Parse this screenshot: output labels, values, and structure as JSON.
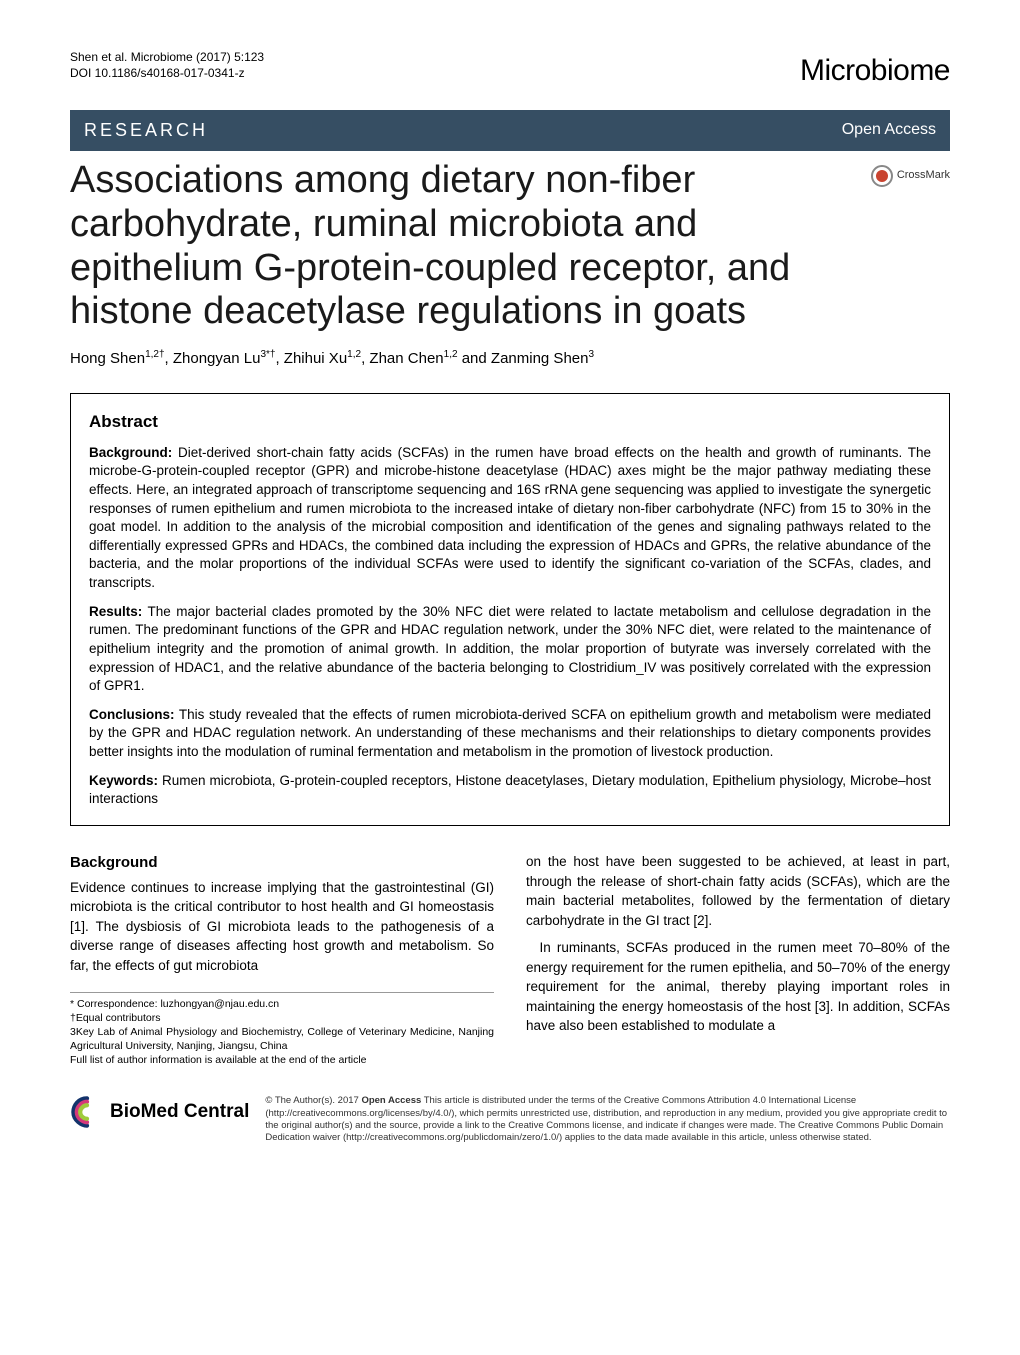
{
  "header": {
    "citation_line1": "Shen et al. Microbiome  (2017) 5:123",
    "citation_line2": "DOI 10.1186/s40168-017-0341-z",
    "journal_name": "Microbiome"
  },
  "bar": {
    "research": "RESEARCH",
    "open_access": "Open Access"
  },
  "title": "Associations among dietary non-fiber carbohydrate, ruminal microbiota and epithelium G-protein-coupled receptor, and histone deacetylase regulations in goats",
  "crossmark_label": "CrossMark",
  "authors_html": "Hong Shen<sup>1,2†</sup>, Zhongyan Lu<sup>3*†</sup>, Zhihui Xu<sup>1,2</sup>, Zhan Chen<sup>1,2</sup> and Zanming Shen<sup>3</sup>",
  "abstract": {
    "heading": "Abstract",
    "background_label": "Background:",
    "background": "Diet-derived short-chain fatty acids (SCFAs) in the rumen have broad effects on the health and growth of ruminants. The microbe-G-protein-coupled receptor (GPR) and microbe-histone deacetylase (HDAC) axes might be the major pathway mediating these effects. Here, an integrated approach of transcriptome sequencing and 16S rRNA gene sequencing was applied to investigate the synergetic responses of rumen epithelium and rumen microbiota to the increased intake of dietary non-fiber carbohydrate (NFC) from 15 to 30% in the goat model. In addition to the analysis of the microbial composition and identification of the genes and signaling pathways related to the differentially expressed GPRs and HDACs, the combined data including the expression of HDACs and GPRs, the relative abundance of the bacteria, and the molar proportions of the individual SCFAs were used to identify the significant co-variation of the SCFAs, clades, and transcripts.",
    "results_label": "Results:",
    "results": "The major bacterial clades promoted by the 30% NFC diet were related to lactate metabolism and cellulose degradation in the rumen. The predominant functions of the GPR and HDAC regulation network, under the 30% NFC diet, were related to the maintenance of epithelium integrity and the promotion of animal growth. In addition, the molar proportion of butyrate was inversely correlated with the expression of HDAC1, and the relative abundance of the bacteria belonging to Clostridium_IV was positively correlated with the expression of GPR1.",
    "conclusions_label": "Conclusions:",
    "conclusions": "This study revealed that the effects of rumen microbiota-derived SCFA on epithelium growth and metabolism were mediated by the GPR and HDAC regulation network. An understanding of these mechanisms and their relationships to dietary components provides better insights into the modulation of ruminal fermentation and metabolism in the promotion of livestock production.",
    "keywords_label": "Keywords:",
    "keywords": "Rumen microbiota, G-protein-coupled receptors, Histone deacetylases, Dietary modulation, Epithelium physiology, Microbe–host interactions"
  },
  "body": {
    "background_heading": "Background",
    "left_p1": "Evidence continues to increase implying that the gastrointestinal (GI) microbiota is the critical contributor to host health and GI homeostasis [1]. The dysbiosis of GI microbiota leads to the pathogenesis of a diverse range of diseases affecting host growth and metabolism. So far, the effects of gut microbiota",
    "right_p1": "on the host have been suggested to be achieved, at least in part, through the release of short-chain fatty acids (SCFAs), which are the main bacterial metabolites, followed by the fermentation of dietary carbohydrate in the GI tract [2].",
    "right_p2": "In ruminants, SCFAs produced in the rumen meet 70–80% of the energy requirement for the rumen epithelia, and 50–70% of the energy requirement for the animal, thereby playing important roles in maintaining the energy homeostasis of the host [3]. In addition, SCFAs have also been established to modulate a"
  },
  "footnotes": {
    "correspondence": "* Correspondence: luzhongyan@njau.edu.cn",
    "equal": "†Equal contributors",
    "affil": "3Key Lab of Animal Physiology and Biochemistry, College of Veterinary Medicine, Nanjing Agricultural University, Nanjing, Jiangsu, China",
    "full_list": "Full list of author information is available at the end of the article"
  },
  "footer": {
    "bmc_bio": "Bio",
    "bmc_med": "Med",
    "bmc_central": " Central",
    "license": "© The Author(s). 2017 Open Access This article is distributed under the terms of the Creative Commons Attribution 4.0 International License (http://creativecommons.org/licenses/by/4.0/), which permits unrestricted use, distribution, and reproduction in any medium, provided you give appropriate credit to the original author(s) and the source, provide a link to the Creative Commons license, and indicate if changes were made. The Creative Commons Public Domain Dedication waiver (http://creativecommons.org/publicdomain/zero/1.0/) applies to the data made available in this article, unless otherwise stated.",
    "open_access_bold": "Open Access"
  },
  "colors": {
    "bar_bg": "#364e63",
    "crossmark_red": "#c94430",
    "bmc_blue": "#13336b",
    "bmc_pink": "#d4387a",
    "bmc_green": "#9fcb3b"
  }
}
